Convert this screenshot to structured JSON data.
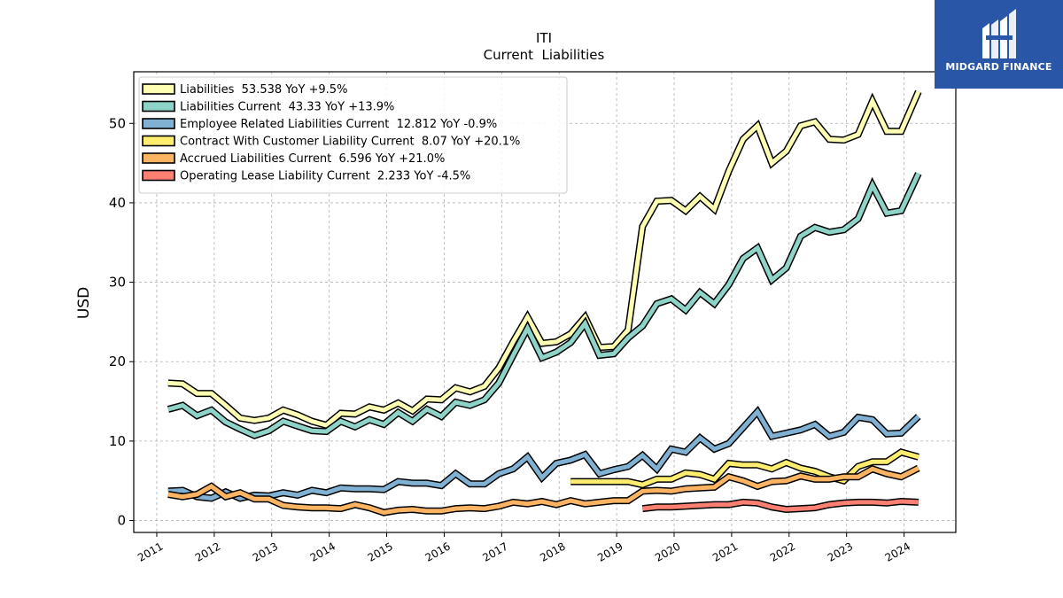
{
  "brand": {
    "name": "MIDGARD FINANCE",
    "bg_color": "#2a56a8"
  },
  "chart_data": {
    "type": "line",
    "title": "ITI",
    "subtitle": "Current  Liabilities",
    "xlabel": "",
    "ylabel": "USD",
    "x_ticks": [
      "2011",
      "2012",
      "2013",
      "2014",
      "2015",
      "2016",
      "2017",
      "2018",
      "2019",
      "2020",
      "2021",
      "2022",
      "2023",
      "2024"
    ],
    "y_ticks": [
      0,
      10,
      20,
      30,
      40,
      50
    ],
    "xlim": [
      2010.6,
      2024.9
    ],
    "ylim": [
      -1.5,
      56.5
    ],
    "grid": true,
    "legend_position": "top-left",
    "series": [
      {
        "name": "Liabilities",
        "legend": "Liabilities  53.538 YoY +9.5%",
        "color": "#ffffb3",
        "x": [
          2011.2,
          2011.45,
          2011.7,
          2011.95,
          2012.2,
          2012.45,
          2012.7,
          2012.95,
          2013.2,
          2013.45,
          2013.7,
          2013.95,
          2014.2,
          2014.45,
          2014.7,
          2014.95,
          2015.2,
          2015.45,
          2015.7,
          2015.95,
          2016.2,
          2016.45,
          2016.7,
          2016.95,
          2017.2,
          2017.45,
          2017.7,
          2017.95,
          2018.2,
          2018.45,
          2018.7,
          2018.95,
          2019.2,
          2019.45,
          2019.7,
          2019.95,
          2020.2,
          2020.45,
          2020.7,
          2020.95,
          2021.2,
          2021.45,
          2021.7,
          2021.95,
          2022.2,
          2022.45,
          2022.7,
          2022.95,
          2023.2,
          2023.45,
          2023.7,
          2023.95,
          2024.25
        ],
        "y": [
          17.3,
          17.2,
          16.0,
          16.0,
          14.5,
          12.9,
          12.6,
          12.9,
          13.9,
          13.3,
          12.5,
          12.0,
          13.5,
          13.4,
          14.3,
          13.9,
          14.8,
          13.8,
          15.3,
          15.2,
          16.7,
          16.2,
          16.9,
          19.2,
          22.5,
          25.6,
          22.3,
          22.5,
          23.5,
          25.6,
          21.8,
          21.9,
          24.0,
          37.0,
          40.2,
          40.3,
          39.0,
          40.8,
          39.2,
          44.0,
          48.0,
          49.7,
          45.0,
          46.5,
          49.7,
          50.2,
          48.0,
          47.9,
          48.6,
          52.8,
          49.0,
          49.0,
          54.0
        ]
      },
      {
        "name": "Liabilities Current",
        "legend": "Liabilities Current  43.33 YoY +13.9%",
        "color": "#8dd3c7",
        "x": [
          2011.2,
          2011.45,
          2011.7,
          2011.95,
          2012.2,
          2012.45,
          2012.7,
          2012.95,
          2013.2,
          2013.45,
          2013.7,
          2013.95,
          2014.2,
          2014.45,
          2014.7,
          2014.95,
          2015.2,
          2015.45,
          2015.7,
          2015.95,
          2016.2,
          2016.45,
          2016.7,
          2016.95,
          2017.2,
          2017.45,
          2017.7,
          2017.95,
          2018.2,
          2018.45,
          2018.7,
          2018.95,
          2019.2,
          2019.45,
          2019.7,
          2019.95,
          2020.2,
          2020.45,
          2020.7,
          2020.95,
          2021.2,
          2021.45,
          2021.7,
          2021.95,
          2022.2,
          2022.45,
          2022.7,
          2022.95,
          2023.2,
          2023.45,
          2023.7,
          2023.95,
          2024.25
        ],
        "y": [
          14.0,
          14.5,
          13.2,
          13.9,
          12.4,
          11.5,
          10.7,
          11.3,
          12.5,
          11.9,
          11.3,
          11.2,
          12.5,
          11.8,
          12.7,
          12.1,
          13.6,
          12.5,
          14.0,
          13.1,
          14.9,
          14.5,
          15.2,
          17.3,
          20.8,
          24.2,
          20.5,
          21.2,
          22.4,
          24.8,
          20.8,
          21.0,
          23.0,
          24.5,
          27.3,
          27.9,
          26.5,
          28.7,
          27.3,
          29.7,
          33.0,
          34.3,
          30.3,
          31.8,
          35.8,
          36.9,
          36.3,
          36.6,
          38.0,
          42.2,
          38.7,
          39.0,
          43.7
        ]
      },
      {
        "name": "Employee Related Liabilities Current",
        "legend": "Employee Related Liabilities Current  12.812 YoY -0.9%",
        "color": "#80b1d3",
        "x": [
          2011.2,
          2011.45,
          2011.7,
          2011.95,
          2012.2,
          2012.45,
          2012.7,
          2012.95,
          2013.2,
          2013.45,
          2013.7,
          2013.95,
          2014.2,
          2014.45,
          2014.7,
          2014.95,
          2015.2,
          2015.45,
          2015.7,
          2015.95,
          2016.2,
          2016.45,
          2016.7,
          2016.95,
          2017.2,
          2017.45,
          2017.7,
          2017.95,
          2018.2,
          2018.45,
          2018.7,
          2018.95,
          2019.2,
          2019.45,
          2019.7,
          2019.95,
          2020.2,
          2020.45,
          2020.7,
          2020.95,
          2021.2,
          2021.45,
          2021.7,
          2021.95,
          2022.2,
          2022.45,
          2022.7,
          2022.95,
          2023.2,
          2023.45,
          2023.7,
          2023.95,
          2024.25
        ],
        "y": [
          3.7,
          3.8,
          3.0,
          2.8,
          3.6,
          2.8,
          3.2,
          3.1,
          3.5,
          3.2,
          3.8,
          3.5,
          4.1,
          4.0,
          4.0,
          3.9,
          4.9,
          4.7,
          4.7,
          4.4,
          5.9,
          4.6,
          4.6,
          5.9,
          6.5,
          8.0,
          5.4,
          7.2,
          7.6,
          8.3,
          5.9,
          6.4,
          6.8,
          8.2,
          6.5,
          9.0,
          8.6,
          10.4,
          9.0,
          9.7,
          11.7,
          13.7,
          10.6,
          11.0,
          11.4,
          12.1,
          10.6,
          11.1,
          13.0,
          12.7,
          10.9,
          11.0,
          13.1
        ]
      },
      {
        "name": "Contract With Customer Liability Current",
        "legend": "Contract With Customer Liability Current  8.07 YoY +20.1%",
        "color": "#ffed6f",
        "x": [
          2018.2,
          2018.45,
          2018.7,
          2018.95,
          2019.2,
          2019.45,
          2019.7,
          2019.95,
          2020.2,
          2020.45,
          2020.7,
          2020.95,
          2021.2,
          2021.45,
          2021.7,
          2021.95,
          2022.2,
          2022.45,
          2022.7,
          2022.95,
          2023.2,
          2023.45,
          2023.7,
          2023.95,
          2024.25
        ],
        "y": [
          4.9,
          4.9,
          4.9,
          4.9,
          4.9,
          4.5,
          5.2,
          5.2,
          6.0,
          5.8,
          5.2,
          7.2,
          7.0,
          7.0,
          6.5,
          7.3,
          6.6,
          6.2,
          5.5,
          5.0,
          6.8,
          7.4,
          7.4,
          8.6,
          8.0
        ]
      },
      {
        "name": "Accrued Liabilities Current",
        "legend": "Accrued Liabilities Current  6.596 YoY +21.0%",
        "color": "#fdb462",
        "x": [
          2011.2,
          2011.45,
          2011.7,
          2011.95,
          2012.2,
          2012.45,
          2012.7,
          2012.95,
          2013.2,
          2013.45,
          2013.7,
          2013.95,
          2014.2,
          2014.45,
          2014.7,
          2014.95,
          2015.2,
          2015.45,
          2015.7,
          2015.95,
          2016.2,
          2016.45,
          2016.7,
          2016.95,
          2017.2,
          2017.45,
          2017.7,
          2017.95,
          2018.2,
          2018.45,
          2018.7,
          2018.95,
          2019.2,
          2019.45,
          2019.7,
          2019.95,
          2020.2,
          2020.45,
          2020.7,
          2020.95,
          2021.2,
          2021.45,
          2021.7,
          2021.95,
          2022.2,
          2022.45,
          2022.7,
          2022.95,
          2023.2,
          2023.45,
          2023.7,
          2023.95,
          2024.25
        ],
        "y": [
          3.3,
          3.0,
          3.3,
          4.3,
          3.0,
          3.5,
          2.7,
          2.7,
          1.9,
          1.7,
          1.6,
          1.6,
          1.5,
          2.0,
          1.6,
          1.0,
          1.3,
          1.4,
          1.2,
          1.2,
          1.5,
          1.6,
          1.5,
          1.8,
          2.3,
          2.1,
          2.4,
          2.0,
          2.5,
          2.1,
          2.3,
          2.5,
          2.5,
          3.7,
          3.8,
          3.7,
          4.0,
          4.1,
          4.2,
          5.5,
          5.0,
          4.3,
          4.9,
          5.0,
          5.6,
          5.2,
          5.2,
          5.5,
          5.5,
          6.5,
          5.9,
          5.5,
          6.6
        ]
      },
      {
        "name": "Operating Lease Liability Current",
        "legend": "Operating Lease Liability Current  2.233 YoY -4.5%",
        "color": "#fb8072",
        "x": [
          2019.45,
          2019.7,
          2019.95,
          2020.2,
          2020.45,
          2020.7,
          2020.95,
          2021.2,
          2021.45,
          2021.7,
          2021.95,
          2022.2,
          2022.45,
          2022.7,
          2022.95,
          2023.2,
          2023.45,
          2023.7,
          2023.95,
          2024.25
        ],
        "y": [
          1.5,
          1.7,
          1.7,
          1.8,
          1.9,
          2.0,
          2.0,
          2.3,
          2.2,
          1.7,
          1.4,
          1.5,
          1.6,
          2.0,
          2.2,
          2.3,
          2.3,
          2.2,
          2.4,
          2.3
        ]
      }
    ]
  }
}
